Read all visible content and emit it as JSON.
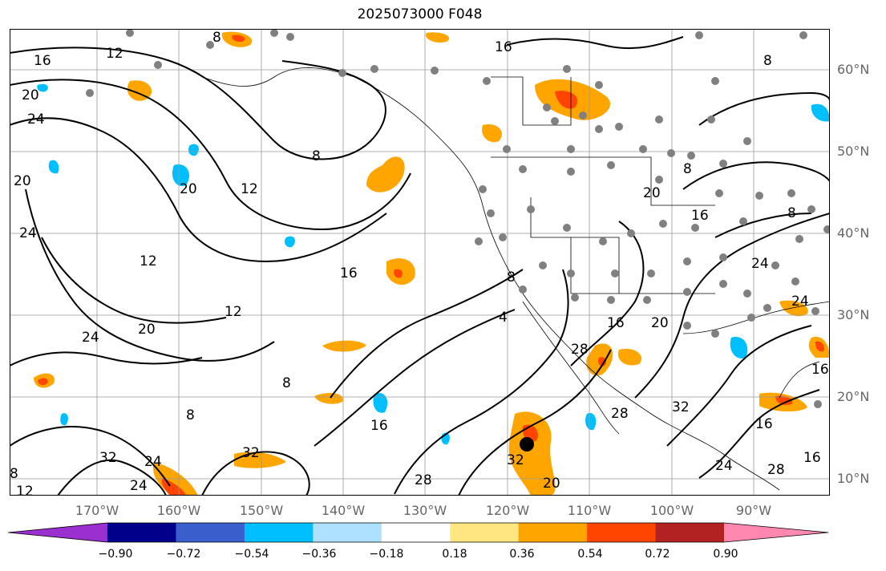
{
  "title": "2025073000 F048",
  "lon_ticks": [
    "170°W",
    "160°W",
    "150°W",
    "140°W",
    "130°W",
    "120°W",
    "110°W",
    "100°W",
    "90°W"
  ],
  "lat_ticks": [
    "60°N",
    "50°N",
    "40°N",
    "30°N",
    "20°N",
    "10°N"
  ],
  "colorbar": {
    "labels": [
      "−0.90",
      "−0.72",
      "−0.54",
      "−0.36",
      "−0.18",
      "0.18",
      "0.36",
      "0.54",
      "0.72",
      "0.90"
    ],
    "colors": [
      "#9b30d0",
      "#00008b",
      "#3a5fcd",
      "#00bfff",
      "#aee0ff",
      "#ffffff",
      "#ffe680",
      "#ffa500",
      "#ff4500",
      "#b22222",
      "#ff88b0"
    ]
  },
  "contour_labels": [
    "8",
    "12",
    "16",
    "20",
    "24",
    "28",
    "32",
    "4"
  ],
  "legend_colors": {
    "positive_shading": "#ffa500",
    "negative_shading": "#00bfff"
  },
  "map_extent": {
    "lon_min": -175,
    "lon_max": -75,
    "lat_min": 7,
    "lat_max": 65
  }
}
